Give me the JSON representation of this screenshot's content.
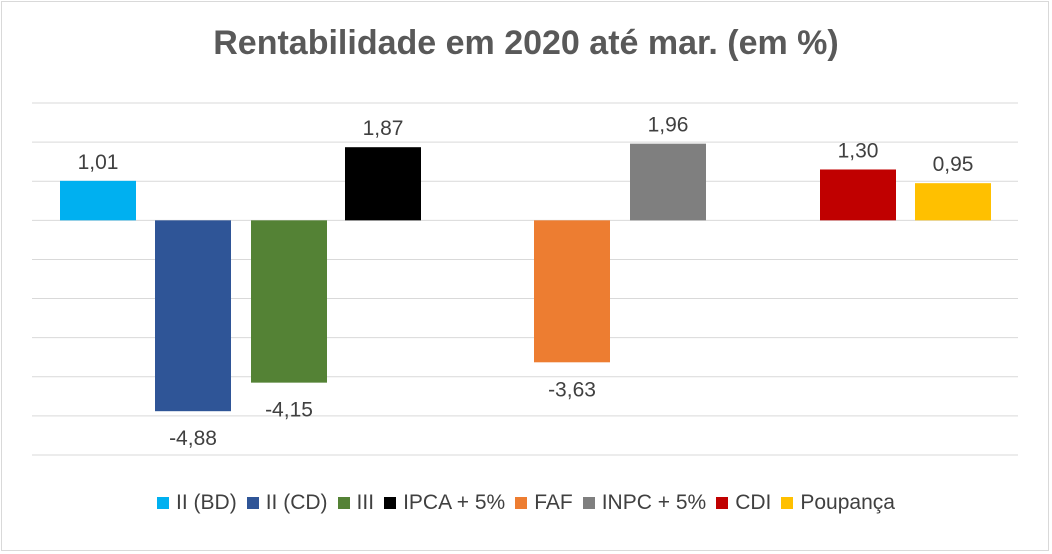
{
  "chart_data": {
    "type": "bar",
    "title": "Rentabilidade em 2020 até mar. (em %)",
    "series": [
      {
        "name": "II (BD)",
        "value": 1.01,
        "label": "1,01",
        "color": "#00b0f0"
      },
      {
        "name": "II (CD)",
        "value": -4.88,
        "label": "-4,88",
        "color": "#2f5597"
      },
      {
        "name": "III",
        "value": -4.15,
        "label": "-4,15",
        "color": "#548235"
      },
      {
        "name": "IPCA + 5%",
        "value": 1.87,
        "label": "1,87",
        "color": "#000000"
      },
      {
        "name": "FAF",
        "value": -3.63,
        "label": "-3,63",
        "color": "#ed7d31"
      },
      {
        "name": "INPC + 5%",
        "value": 1.96,
        "label": "1,96",
        "color": "#7f7f7f"
      },
      {
        "name": "CDI",
        "value": 1.3,
        "label": "1,30",
        "color": "#c00000"
      },
      {
        "name": "Poupança",
        "value": 0.95,
        "label": "0,95",
        "color": "#ffc000"
      }
    ],
    "ylim": [
      -6,
      3
    ],
    "gridlines": true,
    "legend_position": "bottom"
  }
}
